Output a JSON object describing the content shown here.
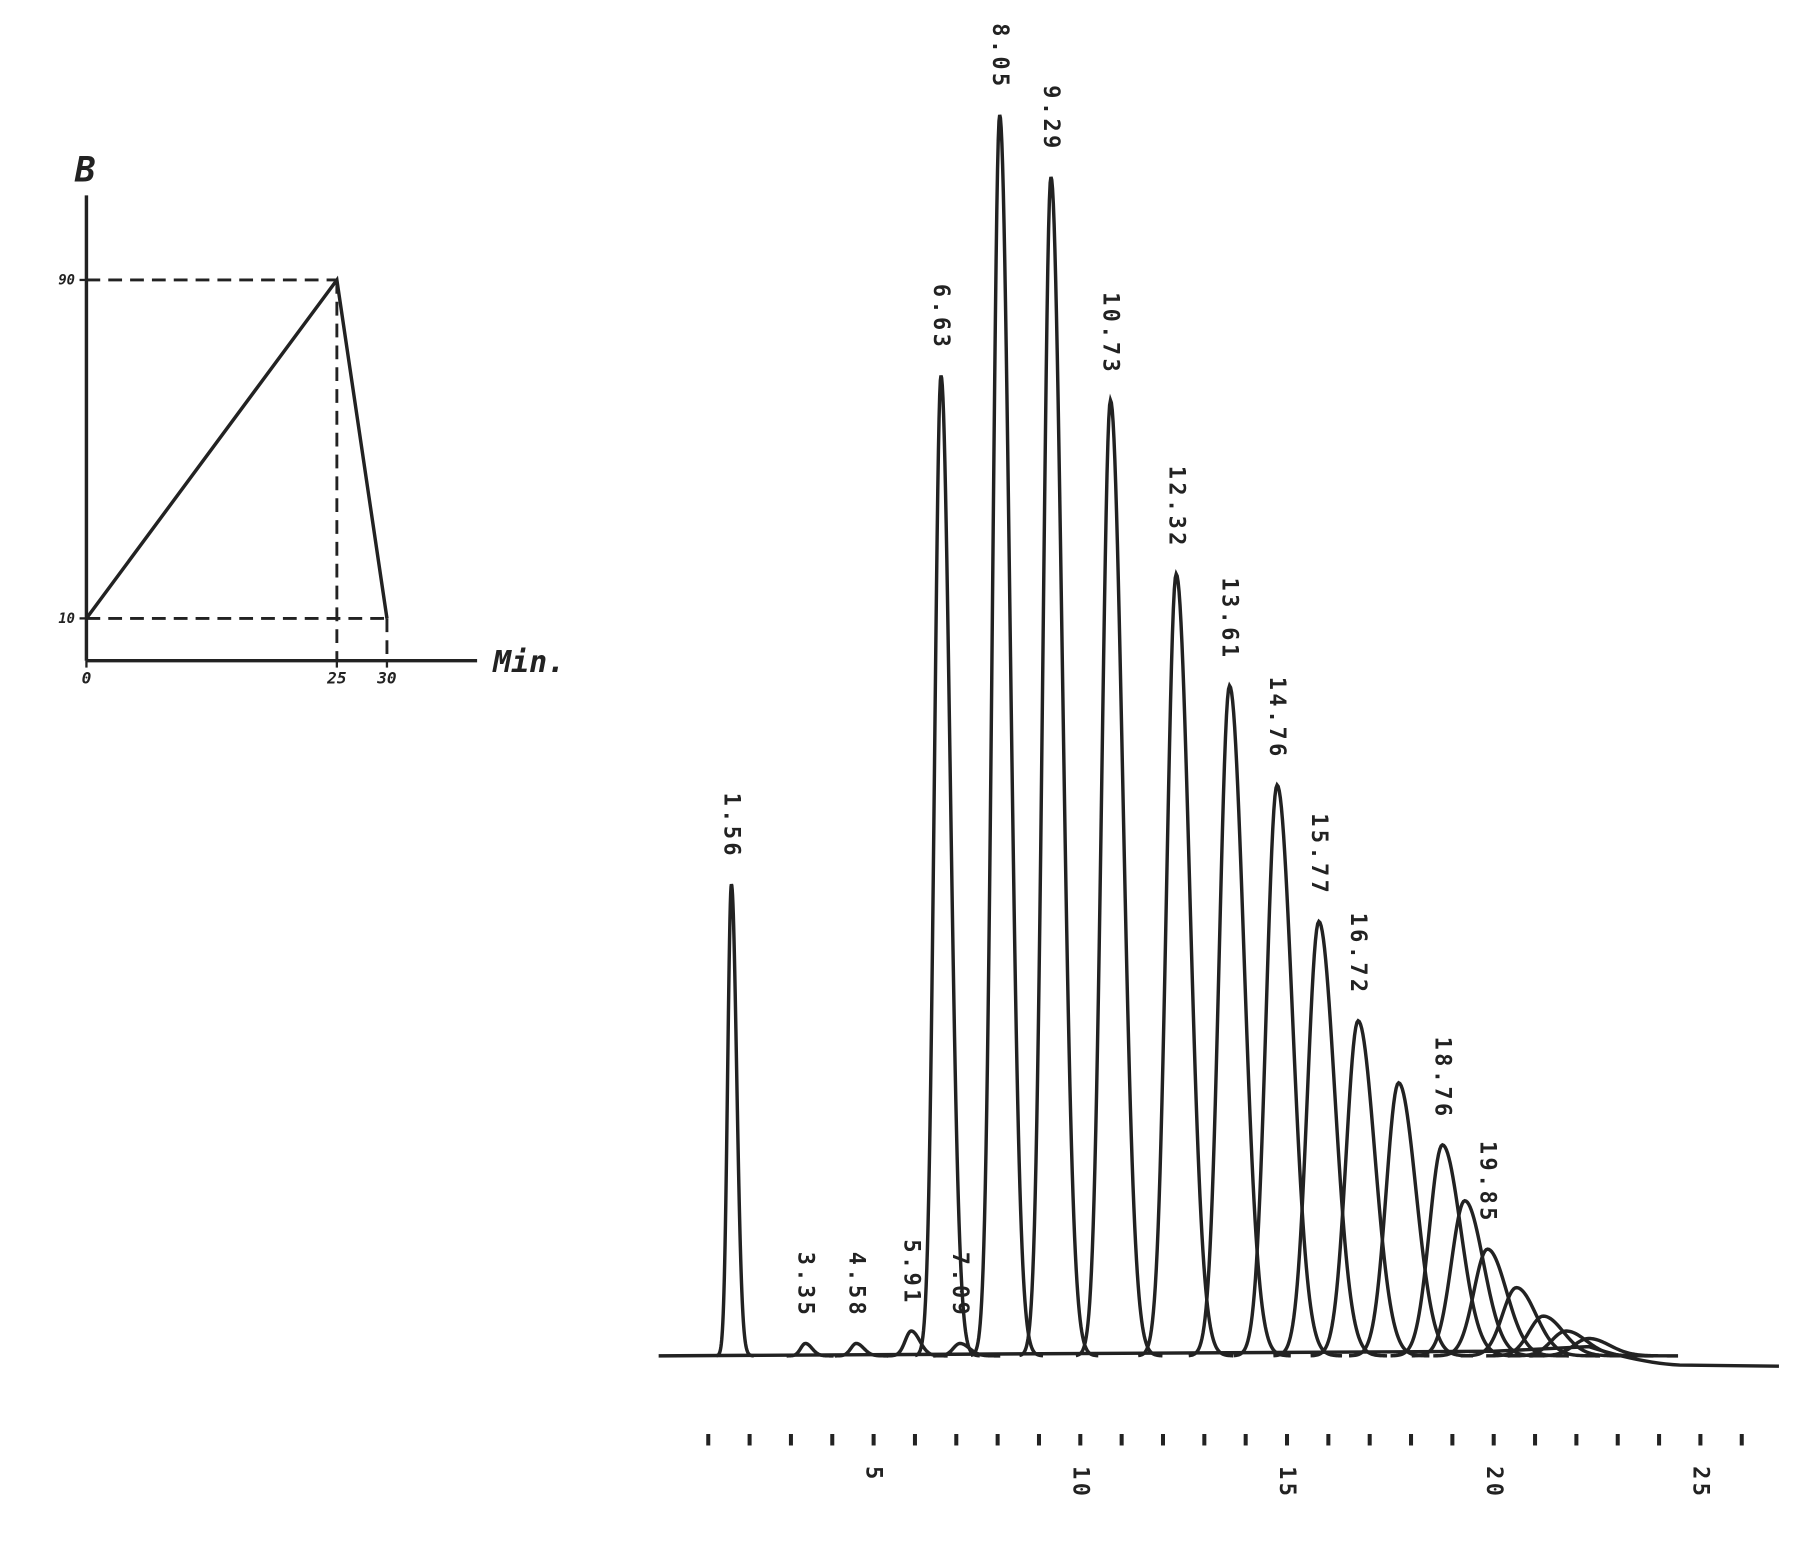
{
  "chart_data": [
    {
      "type": "line",
      "ylabel": "B",
      "xlabel": "Min.",
      "x": [
        0,
        25,
        30
      ],
      "values": [
        10,
        90,
        10
      ],
      "xlim": [
        0,
        39
      ],
      "ylim": [
        0,
        110
      ],
      "xticks": [
        0,
        25,
        30
      ],
      "yticks": [
        10,
        90
      ]
    },
    {
      "type": "peaks",
      "x": [
        1.56,
        3.35,
        4.58,
        5.91,
        6.63,
        7.09,
        8.05,
        9.29,
        10.73,
        12.32,
        13.61,
        14.76,
        15.77,
        16.72,
        17.7,
        18.76,
        19.3,
        19.85,
        20.55,
        21.2,
        21.75,
        22.3
      ],
      "values": [
        38,
        1,
        1,
        2,
        79,
        1,
        100,
        95,
        77,
        63,
        54,
        46,
        35,
        27,
        22,
        17,
        12.5,
        8.6,
        5.5,
        3.2,
        2,
        1.4
      ],
      "x_labels": [
        "1.56",
        "3.35",
        "4.58",
        "5.91",
        "6.63",
        "7.09",
        "8.05",
        "9.29",
        "10.73",
        "12.32",
        "13.61",
        "14.76",
        "15.77",
        "16.72",
        null,
        "18.76",
        null,
        "19.85",
        null,
        null,
        null,
        null
      ],
      "xlim": [
        -0.2,
        26.9
      ],
      "ylim": [
        0,
        100
      ],
      "xticks": [
        5,
        10,
        15,
        20,
        25
      ],
      "xminor_ticks": [
        1,
        2,
        3,
        4,
        5,
        6,
        7,
        8,
        9,
        10,
        11,
        12,
        13,
        14,
        15,
        16,
        17,
        18,
        19,
        20,
        21,
        22,
        23,
        24,
        25,
        26
      ]
    }
  ]
}
